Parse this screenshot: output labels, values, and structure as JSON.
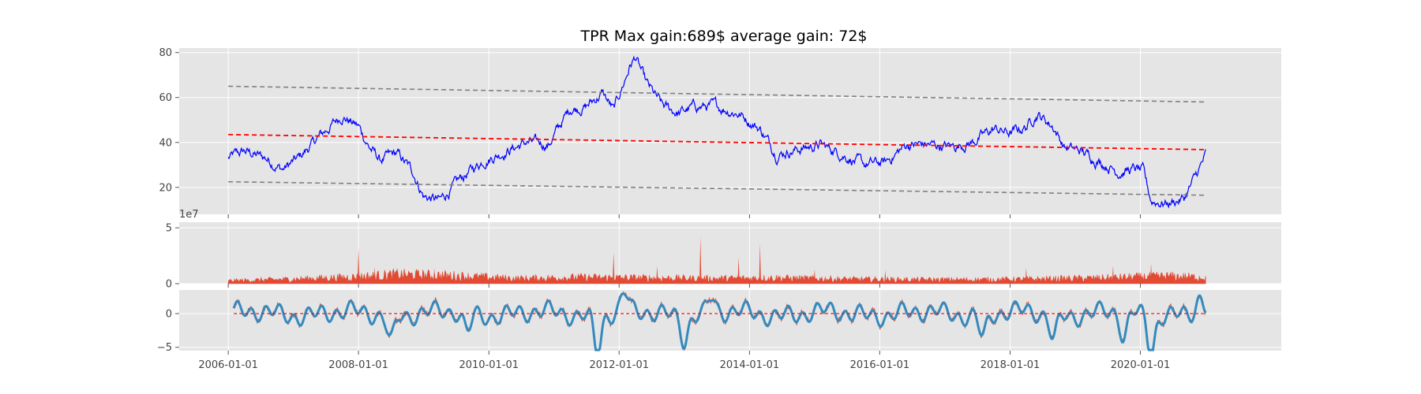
{
  "chart_data": [
    {
      "type": "line",
      "title": "TPR Max gain:689$  average gain: 72$",
      "xlabel": "",
      "ylabel": "",
      "ylim": [
        8,
        82
      ],
      "yticks": [
        20,
        40,
        60,
        80
      ],
      "grid": true,
      "x_range": [
        "2005-04-01",
        "2022-03-01"
      ],
      "series": [
        {
          "role": "price",
          "color": "#0000ff",
          "points": [
            [
              "2006-01-01",
              33
            ],
            [
              "2006-04-01",
              36
            ],
            [
              "2006-08-01",
              33
            ],
            [
              "2006-11-01",
              28
            ],
            [
              "2007-02-01",
              33
            ],
            [
              "2007-06-01",
              43
            ],
            [
              "2007-10-01",
              52
            ],
            [
              "2008-01-01",
              47
            ],
            [
              "2008-03-01",
              38
            ],
            [
              "2008-05-01",
              32
            ],
            [
              "2008-08-01",
              35
            ],
            [
              "2008-11-01",
              27
            ],
            [
              "2009-01-01",
              16
            ],
            [
              "2009-04-01",
              14
            ],
            [
              "2009-08-01",
              24
            ],
            [
              "2009-12-01",
              32
            ],
            [
              "2010-04-01",
              36
            ],
            [
              "2010-08-01",
              40
            ],
            [
              "2010-12-01",
              39
            ],
            [
              "2011-04-01",
              55
            ],
            [
              "2011-07-01",
              56
            ],
            [
              "2011-10-01",
              62
            ],
            [
              "2011-12-01",
              54
            ],
            [
              "2012-03-01",
              74
            ],
            [
              "2012-04-01",
              78
            ],
            [
              "2012-06-01",
              66
            ],
            [
              "2012-09-01",
              56
            ],
            [
              "2012-12-01",
              53
            ],
            [
              "2013-03-01",
              56
            ],
            [
              "2013-07-01",
              56
            ],
            [
              "2013-11-01",
              53
            ],
            [
              "2014-03-01",
              46
            ],
            [
              "2014-06-01",
              35
            ],
            [
              "2014-10-01",
              37
            ],
            [
              "2015-02-01",
              39
            ],
            [
              "2015-06-01",
              35
            ],
            [
              "2015-10-01",
              30
            ],
            [
              "2016-02-01",
              31
            ],
            [
              "2016-06-01",
              39
            ],
            [
              "2016-10-01",
              39
            ],
            [
              "2017-02-01",
              38
            ],
            [
              "2017-06-01",
              40
            ],
            [
              "2017-10-01",
              46
            ],
            [
              "2018-01-01",
              44
            ],
            [
              "2018-04-01",
              47
            ],
            [
              "2018-06-01",
              53
            ],
            [
              "2018-09-01",
              47
            ],
            [
              "2018-11-01",
              38
            ],
            [
              "2019-02-01",
              36
            ],
            [
              "2019-06-01",
              31
            ],
            [
              "2019-09-01",
              27
            ],
            [
              "2019-12-01",
              28
            ],
            [
              "2020-01-15",
              27
            ],
            [
              "2020-03-01",
              14
            ],
            [
              "2020-06-01",
              13
            ],
            [
              "2020-09-01",
              15
            ],
            [
              "2020-11-01",
              24
            ],
            [
              "2021-01-01",
              34
            ]
          ]
        },
        {
          "role": "trend",
          "color": "#ff0000",
          "style": "dashed",
          "points": [
            [
              "2006-01-01",
              43.5
            ],
            [
              "2021-01-01",
              36.8
            ]
          ]
        },
        {
          "role": "upper-band",
          "color": "#808080",
          "style": "dashed",
          "points": [
            [
              "2006-01-01",
              65
            ],
            [
              "2021-01-01",
              58
            ]
          ]
        },
        {
          "role": "lower-band",
          "color": "#808080",
          "style": "dashed",
          "points": [
            [
              "2006-01-01",
              22.5
            ],
            [
              "2021-01-01",
              16.5
            ]
          ]
        }
      ]
    },
    {
      "type": "area",
      "ylim": [
        0,
        5.5
      ],
      "yticks": [
        0,
        5
      ],
      "offset_text": "1e7",
      "grid": true,
      "x_range": [
        "2005-04-01",
        "2022-03-01"
      ],
      "color": "#e24a33",
      "series": [
        {
          "role": "volume",
          "points": [
            [
              "2006-01-01",
              0.25
            ],
            [
              "2007-01-01",
              0.4
            ],
            [
              "2008-01-01",
              0.6
            ],
            [
              "2008-08-01",
              0.8
            ],
            [
              "2009-06-01",
              0.7
            ],
            [
              "2010-06-01",
              0.45
            ],
            [
              "2011-06-01",
              0.55
            ],
            [
              "2012-06-01",
              0.5
            ],
            [
              "2013-06-01",
              0.45
            ],
            [
              "2014-06-01",
              0.5
            ],
            [
              "2015-06-01",
              0.4
            ],
            [
              "2016-06-01",
              0.35
            ],
            [
              "2017-06-01",
              0.35
            ],
            [
              "2018-06-01",
              0.4
            ],
            [
              "2019-06-01",
              0.5
            ],
            [
              "2020-06-01",
              0.65
            ],
            [
              "2021-01-01",
              0.55
            ]
          ],
          "spikes": [
            [
              "2008-01-01",
              3.2
            ],
            [
              "2008-04-01",
              1.5
            ],
            [
              "2009-03-01",
              1.4
            ],
            [
              "2011-12-01",
              2.8
            ],
            [
              "2012-08-01",
              1.6
            ],
            [
              "2013-04-01",
              4.2
            ],
            [
              "2013-11-01",
              2.4
            ],
            [
              "2014-03-01",
              3.6
            ],
            [
              "2015-01-01",
              1.3
            ],
            [
              "2016-02-01",
              1.2
            ],
            [
              "2018-04-01",
              1.4
            ],
            [
              "2019-08-01",
              1.6
            ],
            [
              "2020-03-01",
              1.8
            ]
          ]
        }
      ]
    },
    {
      "type": "line",
      "ylim": [
        -5.5,
        3.5
      ],
      "yticks": [
        -5,
        0
      ],
      "grid": true,
      "x_range": [
        "2005-04-01",
        "2022-03-01"
      ],
      "xticks": [
        "2006-01-01",
        "2008-01-01",
        "2010-01-01",
        "2012-01-01",
        "2014-01-01",
        "2016-01-01",
        "2018-01-01",
        "2020-01-01"
      ],
      "series": [
        {
          "role": "oscillator",
          "color": "#348abd",
          "linewidth": "thick",
          "start": "2006-02-01",
          "end": "2021-01-01"
        },
        {
          "role": "oscillator-raw",
          "color": "#e24a33",
          "start": "2006-02-01",
          "end": "2021-01-01"
        },
        {
          "role": "zero-line",
          "color": "#ff0000",
          "style": "dashed",
          "value": 0
        }
      ],
      "extremes": [
        [
          "2008-07-01",
          -3.5
        ],
        [
          "2009-09-01",
          -2.5
        ],
        [
          "2011-09-01",
          -5.2
        ],
        [
          "2012-02-01",
          3.0
        ],
        [
          "2013-01-01",
          -3.2
        ],
        [
          "2013-06-01",
          2.5
        ],
        [
          "2017-08-01",
          -3.0
        ],
        [
          "2018-09-01",
          -3.3
        ],
        [
          "2019-10-01",
          -3.5
        ],
        [
          "2020-03-01",
          -5.2
        ],
        [
          "2020-12-01",
          2.5
        ]
      ]
    }
  ]
}
